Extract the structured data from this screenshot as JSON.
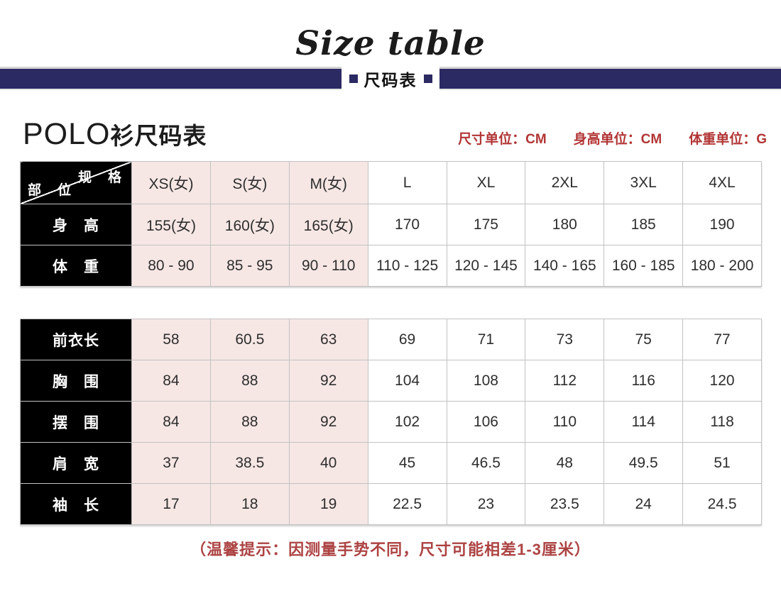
{
  "page": {
    "title_en": "Size table",
    "banner_label": "尺码表",
    "heading": {
      "brand": "POLO",
      "rest": "衫尺码表"
    },
    "units": [
      "尺寸单位：CM",
      "身高单位：CM",
      "体重单位：G"
    ],
    "note": "（温馨提示：因测量手势不同，尺寸可能相差1-3厘米）"
  },
  "colors": {
    "banner_navy": "#2b2a63",
    "pink_column": "#f6e7e5",
    "label_black": "#000000",
    "accent_red": "#b23535",
    "grid_line": "#c2c2c2"
  },
  "size_table": {
    "corner": {
      "top_right": "规　格",
      "bottom_left": "部　位"
    },
    "columns": [
      "XS(女)",
      "S(女)",
      "M(女)",
      "L",
      "XL",
      "2XL",
      "3XL",
      "4XL"
    ],
    "rows_top": [
      {
        "label": "身　高",
        "values": [
          "155(女)",
          "160(女)",
          "165(女)",
          "170",
          "175",
          "180",
          "185",
          "190"
        ]
      },
      {
        "label": "体　重",
        "values": [
          "80 - 90",
          "85 - 95",
          "90 - 110",
          "110 - 125",
          "120 - 145",
          "140 - 165",
          "160 - 185",
          "180 - 200"
        ]
      }
    ],
    "rows_measure": [
      {
        "label": "前衣长",
        "values": [
          "58",
          "60.5",
          "63",
          "69",
          "71",
          "73",
          "75",
          "77"
        ]
      },
      {
        "label": "胸　围",
        "values": [
          "84",
          "88",
          "92",
          "104",
          "108",
          "112",
          "116",
          "120"
        ]
      },
      {
        "label": "摆　围",
        "values": [
          "84",
          "88",
          "92",
          "102",
          "106",
          "110",
          "114",
          "118"
        ]
      },
      {
        "label": "肩　宽",
        "values": [
          "37",
          "38.5",
          "40",
          "45",
          "46.5",
          "48",
          "49.5",
          "51"
        ]
      },
      {
        "label": "袖　长",
        "values": [
          "17",
          "18",
          "19",
          "22.5",
          "23",
          "23.5",
          "24",
          "24.5"
        ]
      }
    ]
  }
}
